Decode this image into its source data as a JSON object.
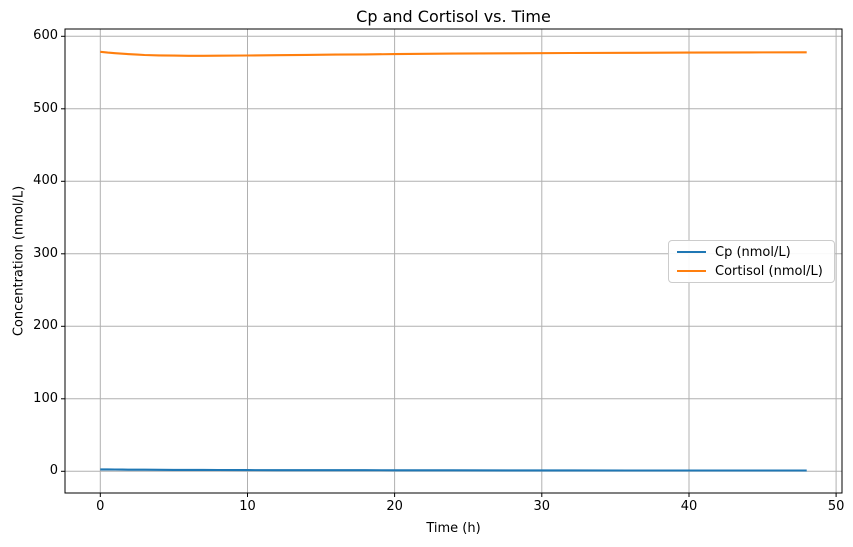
{
  "chart_data": {
    "type": "line",
    "title": "Cp and Cortisol vs. Time",
    "xlabel": "Time (h)",
    "ylabel": "Concentration (nmol/L)",
    "xlim": [
      -2.4,
      50.4
    ],
    "ylim": [
      -30,
      610
    ],
    "xticks": [
      0,
      10,
      20,
      30,
      40,
      50
    ],
    "yticks": [
      0,
      100,
      200,
      300,
      400,
      500,
      600
    ],
    "grid": true,
    "grid_color": "#b0b0b0",
    "spine_color": "#000000",
    "legend": {
      "position": "center right"
    },
    "x": [
      0,
      0.5,
      1,
      1.5,
      2,
      2.5,
      3,
      4,
      5,
      6,
      7,
      8,
      10,
      12,
      14,
      16,
      18,
      20,
      24,
      28,
      32,
      36,
      40,
      44,
      48
    ],
    "series": [
      {
        "name": "Cp (nmol/L)",
        "color": "#1f77b4",
        "y": [
          2.6,
          2.5,
          2.4,
          2.3,
          2.2,
          2.2,
          2.1,
          2.0,
          1.9,
          1.8,
          1.8,
          1.7,
          1.6,
          1.5,
          1.5,
          1.4,
          1.4,
          1.3,
          1.3,
          1.2,
          1.2,
          1.1,
          1.1,
          1.0,
          1.0
        ]
      },
      {
        "name": "Cortisol (nmol/L)",
        "color": "#ff7f0e",
        "y": [
          578.5,
          577.5,
          576.6,
          575.9,
          575.2,
          574.7,
          574.2,
          573.6,
          573.3,
          573.1,
          573.1,
          573.2,
          573.5,
          573.9,
          574.3,
          574.7,
          575.0,
          575.4,
          576.0,
          576.5,
          576.9,
          577.2,
          577.5,
          577.7,
          577.8
        ]
      }
    ]
  }
}
